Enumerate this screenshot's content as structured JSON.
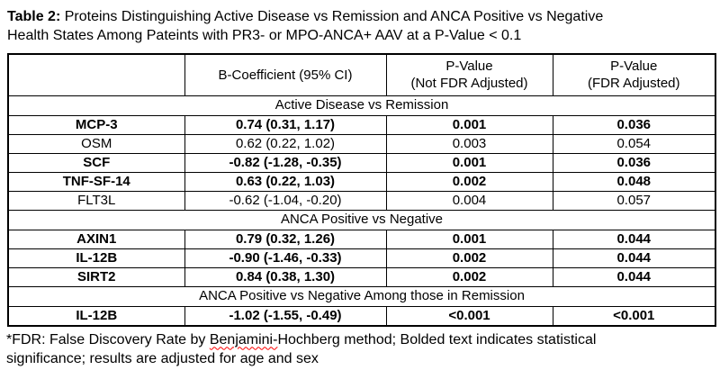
{
  "title": {
    "label": "Table 2:",
    "line1": "Proteins Distinguishing Active Disease vs Remission and ANCA Positive vs Negative",
    "line2": "Health States Among Pateints with PR3- or MPO-ANCA+ AAV at a P-Value < 0.1"
  },
  "table": {
    "header": {
      "col0": "",
      "col1": "B-Coefficient (95% CI)",
      "col2_line1": "P-Value",
      "col2_line2": "(Not FDR Adjusted)",
      "col3_line1": "P-Value",
      "col3_line2": "(FDR Adjusted)"
    },
    "sections": [
      {
        "label": "Active Disease vs Remission",
        "rows": [
          {
            "protein": "MCP-3",
            "b_coef": "0.74 (0.31, 1.17)",
            "p_raw": "0.001",
            "p_fdr": "0.036",
            "bold": true
          },
          {
            "protein": "OSM",
            "b_coef": "0.62 (0.22, 1.02)",
            "p_raw": "0.003",
            "p_fdr": "0.054",
            "bold": false
          },
          {
            "protein": "SCF",
            "b_coef": "-0.82 (-1.28, -0.35)",
            "p_raw": "0.001",
            "p_fdr": "0.036",
            "bold": true
          },
          {
            "protein": "TNF-SF-14",
            "b_coef": "0.63 (0.22, 1.03)",
            "p_raw": "0.002",
            "p_fdr": "0.048",
            "bold": true
          },
          {
            "protein": "FLT3L",
            "b_coef": "-0.62 (-1.04, -0.20)",
            "p_raw": "0.004",
            "p_fdr": "0.057",
            "bold": false
          }
        ]
      },
      {
        "label": "ANCA Positive vs Negative",
        "rows": [
          {
            "protein": "AXIN1",
            "b_coef": "0.79 (0.32, 1.26)",
            "p_raw": "0.001",
            "p_fdr": "0.044",
            "bold": true
          },
          {
            "protein": "IL-12B",
            "b_coef": "-0.90 (-1.46, -0.33)",
            "p_raw": "0.002",
            "p_fdr": "0.044",
            "bold": true
          },
          {
            "protein": "SIRT2",
            "b_coef": "0.84 (0.38, 1.30)",
            "p_raw": "0.002",
            "p_fdr": "0.044",
            "bold": true
          }
        ]
      },
      {
        "label": "ANCA Positive vs Negative Among those in Remission",
        "rows": [
          {
            "protein": "IL-12B",
            "b_coef": "-1.02 (-1.55, -0.49)",
            "p_raw": "<0.001",
            "p_fdr": "<0.001",
            "bold": true
          }
        ]
      }
    ]
  },
  "footnote": {
    "line1_part1": "*FDR: False Discovery Rate by ",
    "line1_misspelled": "Benjamini-",
    "line1_part2": "Hochberg method; Bolded text indicates statistical",
    "line2": "significance; results are adjusted for age and sex",
    "squiggle_color": "#ff0000"
  },
  "colors": {
    "text": "#000000",
    "background": "#ffffff",
    "border": "#000000"
  }
}
